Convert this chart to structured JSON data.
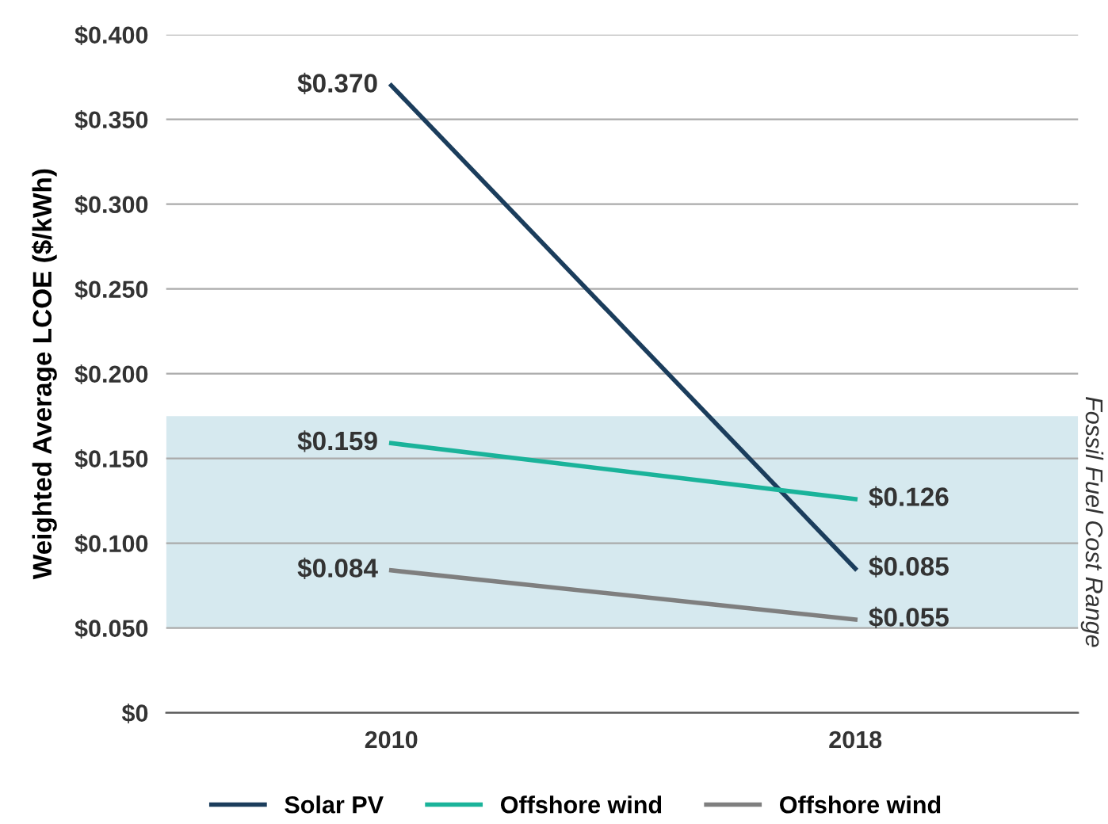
{
  "chart_data": {
    "type": "line",
    "ylabel": "Weighted Average LCOE ($/kWh)",
    "categories": [
      "2010",
      "2018"
    ],
    "series": [
      {
        "name": "Solar PV",
        "color": "#1b3d5c",
        "values": [
          0.37,
          0.085
        ],
        "value_labels": [
          "$0.370",
          "$0.085"
        ]
      },
      {
        "name": "Offshore wind",
        "color": "#1ab39a",
        "values": [
          0.159,
          0.126
        ],
        "value_labels": [
          "$0.159",
          "$0.126"
        ]
      },
      {
        "name": "Offshore wind",
        "color": "#7f7f7f",
        "values": [
          0.084,
          0.055
        ],
        "value_labels": [
          "$0.084",
          "$0.055"
        ]
      }
    ],
    "ylim": [
      0,
      0.4
    ],
    "yticks": [
      {
        "value": 0,
        "label": "$0"
      },
      {
        "value": 0.05,
        "label": "$0.050"
      },
      {
        "value": 0.1,
        "label": "$0.100"
      },
      {
        "value": 0.15,
        "label": "$0.150"
      },
      {
        "value": 0.2,
        "label": "$0.200"
      },
      {
        "value": 0.25,
        "label": "$0.250"
      },
      {
        "value": 0.3,
        "label": "$0.300"
      },
      {
        "value": 0.35,
        "label": "$0.350"
      },
      {
        "value": 0.4,
        "label": "$0.400"
      }
    ],
    "bands": [
      {
        "axis": "y",
        "from": 0.05,
        "to": 0.175,
        "label": "Fossil Fuel Cost Range",
        "color": "#d6e9ef"
      }
    ],
    "grid": "y",
    "legend": "bottom",
    "marker": "none",
    "line_style": "solid"
  }
}
